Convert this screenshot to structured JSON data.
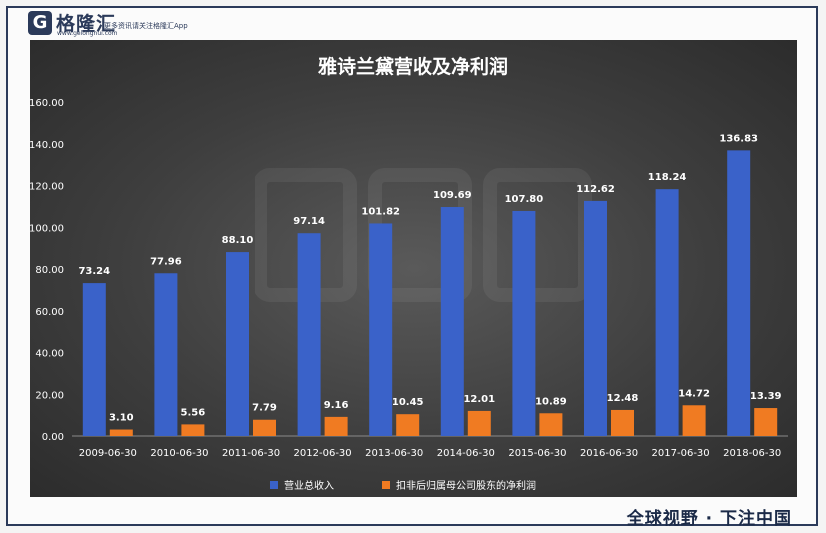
{
  "brand": {
    "logo_letter": "G",
    "name": "格隆汇",
    "url": "www.gelonghui.com",
    "tagline": "更多资讯请关注格隆汇App",
    "slogan": "全球视野 · 下注中国"
  },
  "chart_data": {
    "type": "bar",
    "title": "雅诗兰黛营收及净利润",
    "categories": [
      "2009-06-30",
      "2010-06-30",
      "2011-06-30",
      "2012-06-30",
      "2013-06-30",
      "2014-06-30",
      "2015-06-30",
      "2016-06-30",
      "2017-06-30",
      "2018-06-30"
    ],
    "series": [
      {
        "name": "营业总收入",
        "values": [
          73.24,
          77.96,
          88.1,
          97.14,
          101.82,
          109.69,
          107.8,
          112.62,
          118.24,
          136.83
        ],
        "labels": [
          "73.24",
          "77.96",
          "88.10",
          "97.14",
          "101.82",
          "109.69",
          "107.80",
          "112.62",
          "118.24",
          "136.83"
        ],
        "color": "#3a62c9"
      },
      {
        "name": "扣非后归属母公司股东的净利润",
        "values": [
          3.1,
          5.56,
          7.79,
          9.16,
          10.45,
          12.01,
          10.89,
          12.48,
          14.72,
          13.39
        ],
        "labels": [
          "3.10",
          "5.56",
          "7.79",
          "9.16",
          "10.45",
          "12.01",
          "10.89",
          "12.48",
          "14.72",
          "13.39"
        ],
        "color": "#f07b22"
      }
    ],
    "yticks": [
      "0.00",
      "20.00",
      "40.00",
      "60.00",
      "80.00",
      "100.00",
      "120.00",
      "140.00",
      "160.00"
    ],
    "ylim": [
      0,
      160
    ],
    "grid": false,
    "legend": "bottom",
    "background": "#3a3a3a",
    "text_color": "#ffffff"
  }
}
